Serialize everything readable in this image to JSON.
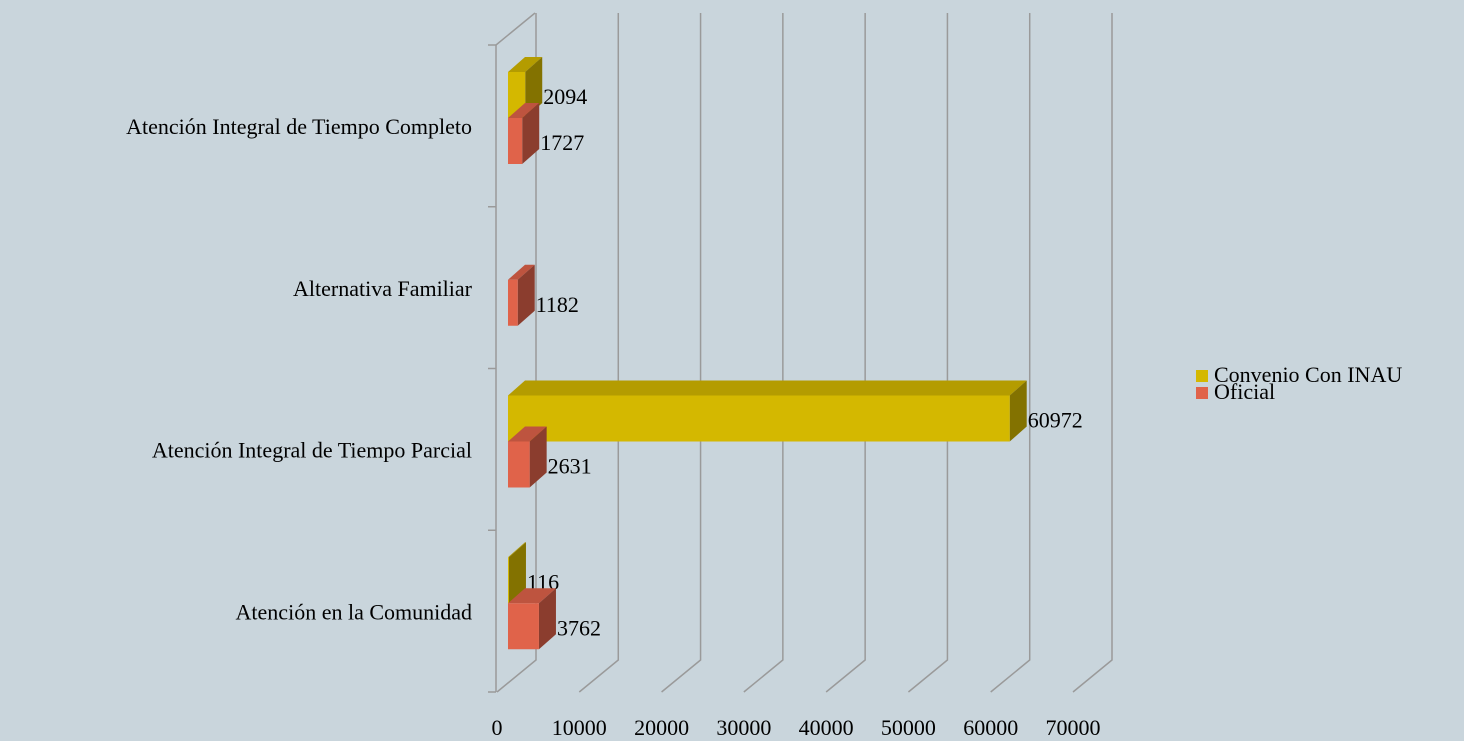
{
  "chart_data": {
    "type": "bar3d_horizontal",
    "categories": [
      "Atención Integral de Tiempo Completo",
      "Alternativa Familiar",
      "Atención Integral de Tiempo Parcial",
      "Atención en la Comunidad"
    ],
    "series": [
      {
        "name": "Convenio Con INAU",
        "color": "#d4b800",
        "values": [
          2094,
          null,
          60972,
          116
        ]
      },
      {
        "name": "Oficial",
        "color": "#e0634a",
        "values": [
          1727,
          1182,
          2631,
          3762
        ]
      }
    ],
    "xlim": [
      0,
      70000
    ],
    "xticks": [
      0,
      10000,
      20000,
      30000,
      40000,
      50000,
      60000,
      70000
    ],
    "grid": true,
    "legend": "right"
  }
}
